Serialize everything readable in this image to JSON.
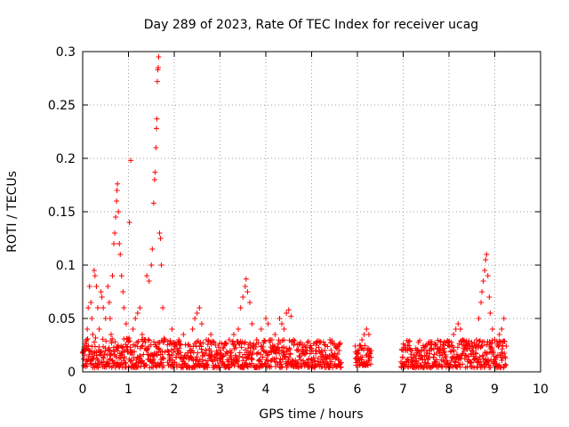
{
  "chart_data": {
    "type": "scatter",
    "title": "Day 289 of 2023, Rate Of TEC Index for receiver ucag",
    "xlabel": "GPS time / hours",
    "ylabel": "ROTI / TECUs",
    "xlim": [
      0,
      10
    ],
    "ylim": [
      0,
      0.3
    ],
    "xticks": [
      0,
      1,
      2,
      3,
      4,
      5,
      6,
      7,
      8,
      9,
      10
    ],
    "yticks": [
      0,
      0.05,
      0.1,
      0.15,
      0.2,
      0.25,
      0.3
    ],
    "xtick_labels": [
      "0",
      "1",
      "2",
      "3",
      "4",
      "5",
      "6",
      "7",
      "8",
      "9",
      "10"
    ],
    "ytick_labels": [
      "0",
      "0.05",
      "0.1",
      "0.15",
      "0.2",
      "0.25",
      "0.3"
    ],
    "grid": true,
    "marker": "+",
    "color": "#ff0000",
    "series": [
      {
        "name": "ROTI",
        "points": [
          [
            0.02,
            0.012
          ],
          [
            0.05,
            0.02
          ],
          [
            0.08,
            0.03
          ],
          [
            0.1,
            0.04
          ],
          [
            0.12,
            0.06
          ],
          [
            0.15,
            0.08
          ],
          [
            0.18,
            0.065
          ],
          [
            0.2,
            0.05
          ],
          [
            0.22,
            0.035
          ],
          [
            0.25,
            0.095
          ],
          [
            0.27,
            0.09
          ],
          [
            0.3,
            0.08
          ],
          [
            0.33,
            0.06
          ],
          [
            0.36,
            0.04
          ],
          [
            0.4,
            0.075
          ],
          [
            0.42,
            0.07
          ],
          [
            0.45,
            0.06
          ],
          [
            0.5,
            0.05
          ],
          [
            0.55,
            0.08
          ],
          [
            0.58,
            0.065
          ],
          [
            0.6,
            0.05
          ],
          [
            0.62,
            0.035
          ],
          [
            0.65,
            0.09
          ],
          [
            0.68,
            0.12
          ],
          [
            0.7,
            0.13
          ],
          [
            0.72,
            0.145
          ],
          [
            0.74,
            0.16
          ],
          [
            0.75,
            0.17
          ],
          [
            0.76,
            0.176
          ],
          [
            0.78,
            0.15
          ],
          [
            0.8,
            0.12
          ],
          [
            0.82,
            0.11
          ],
          [
            0.85,
            0.09
          ],
          [
            0.88,
            0.075
          ],
          [
            0.9,
            0.06
          ],
          [
            0.95,
            0.045
          ],
          [
            1.0,
            0.03
          ],
          [
            1.02,
            0.14
          ],
          [
            1.05,
            0.198
          ],
          [
            1.1,
            0.04
          ],
          [
            1.15,
            0.05
          ],
          [
            1.2,
            0.055
          ],
          [
            1.25,
            0.06
          ],
          [
            1.3,
            0.035
          ],
          [
            1.35,
            0.03
          ],
          [
            1.4,
            0.09
          ],
          [
            1.45,
            0.085
          ],
          [
            1.5,
            0.1
          ],
          [
            1.52,
            0.115
          ],
          [
            1.55,
            0.158
          ],
          [
            1.57,
            0.18
          ],
          [
            1.58,
            0.187
          ],
          [
            1.6,
            0.21
          ],
          [
            1.61,
            0.228
          ],
          [
            1.62,
            0.237
          ],
          [
            1.63,
            0.272
          ],
          [
            1.64,
            0.283
          ],
          [
            1.65,
            0.285
          ],
          [
            1.66,
            0.295
          ],
          [
            1.68,
            0.13
          ],
          [
            1.7,
            0.125
          ],
          [
            1.72,
            0.1
          ],
          [
            1.75,
            0.06
          ],
          [
            1.8,
            0.03
          ],
          [
            1.85,
            0.02
          ],
          [
            1.9,
            0.015
          ],
          [
            1.95,
            0.04
          ],
          [
            2.0,
            0.025
          ],
          [
            2.1,
            0.03
          ],
          [
            2.2,
            0.035
          ],
          [
            2.3,
            0.025
          ],
          [
            2.4,
            0.04
          ],
          [
            2.45,
            0.05
          ],
          [
            2.5,
            0.055
          ],
          [
            2.55,
            0.06
          ],
          [
            2.6,
            0.045
          ],
          [
            2.7,
            0.03
          ],
          [
            2.8,
            0.035
          ],
          [
            2.9,
            0.025
          ],
          [
            3.0,
            0.02
          ],
          [
            3.1,
            0.025
          ],
          [
            3.2,
            0.03
          ],
          [
            3.3,
            0.035
          ],
          [
            3.4,
            0.04
          ],
          [
            3.45,
            0.06
          ],
          [
            3.5,
            0.07
          ],
          [
            3.55,
            0.08
          ],
          [
            3.57,
            0.087
          ],
          [
            3.6,
            0.075
          ],
          [
            3.65,
            0.065
          ],
          [
            3.7,
            0.045
          ],
          [
            3.8,
            0.03
          ],
          [
            3.9,
            0.04
          ],
          [
            4.0,
            0.05
          ],
          [
            4.05,
            0.045
          ],
          [
            4.1,
            0.03
          ],
          [
            4.2,
            0.035
          ],
          [
            4.3,
            0.05
          ],
          [
            4.35,
            0.045
          ],
          [
            4.4,
            0.04
          ],
          [
            4.45,
            0.055
          ],
          [
            4.5,
            0.058
          ],
          [
            4.55,
            0.052
          ],
          [
            4.6,
            0.03
          ],
          [
            4.7,
            0.02
          ],
          [
            4.8,
            0.025
          ],
          [
            4.9,
            0.02
          ],
          [
            5.0,
            0.022
          ],
          [
            5.1,
            0.025
          ],
          [
            5.2,
            0.028
          ],
          [
            5.3,
            0.025
          ],
          [
            5.4,
            0.03
          ],
          [
            5.5,
            0.025
          ],
          [
            5.6,
            0.02
          ],
          [
            6.0,
            0.02
          ],
          [
            6.05,
            0.025
          ],
          [
            6.1,
            0.03
          ],
          [
            6.15,
            0.035
          ],
          [
            6.2,
            0.04
          ],
          [
            6.25,
            0.035
          ],
          [
            6.3,
            0.02
          ],
          [
            7.0,
            0.02
          ],
          [
            7.1,
            0.025
          ],
          [
            7.2,
            0.02
          ],
          [
            7.3,
            0.018
          ],
          [
            7.4,
            0.02
          ],
          [
            7.5,
            0.025
          ],
          [
            7.6,
            0.028
          ],
          [
            7.7,
            0.025
          ],
          [
            7.8,
            0.02
          ],
          [
            7.9,
            0.022
          ],
          [
            8.0,
            0.025
          ],
          [
            8.1,
            0.035
          ],
          [
            8.15,
            0.04
          ],
          [
            8.2,
            0.045
          ],
          [
            8.25,
            0.04
          ],
          [
            8.3,
            0.03
          ],
          [
            8.4,
            0.025
          ],
          [
            8.5,
            0.02
          ],
          [
            8.6,
            0.03
          ],
          [
            8.65,
            0.05
          ],
          [
            8.7,
            0.065
          ],
          [
            8.72,
            0.075
          ],
          [
            8.75,
            0.085
          ],
          [
            8.78,
            0.095
          ],
          [
            8.8,
            0.105
          ],
          [
            8.82,
            0.11
          ],
          [
            8.85,
            0.09
          ],
          [
            8.88,
            0.07
          ],
          [
            8.9,
            0.055
          ],
          [
            8.95,
            0.04
          ],
          [
            9.0,
            0.03
          ],
          [
            9.05,
            0.025
          ],
          [
            9.1,
            0.035
          ],
          [
            9.15,
            0.04
          ],
          [
            9.2,
            0.05
          ]
        ]
      }
    ],
    "bands": [
      {
        "x_start": 0.0,
        "x_end": 1.8,
        "y_min": 0.004,
        "y_max": 0.032
      },
      {
        "x_start": 1.85,
        "x_end": 5.65,
        "y_min": 0.004,
        "y_max": 0.03
      },
      {
        "x_start": 5.95,
        "x_end": 6.3,
        "y_min": 0.006,
        "y_max": 0.025
      },
      {
        "x_start": 6.95,
        "x_end": 9.25,
        "y_min": 0.004,
        "y_max": 0.03
      }
    ]
  }
}
